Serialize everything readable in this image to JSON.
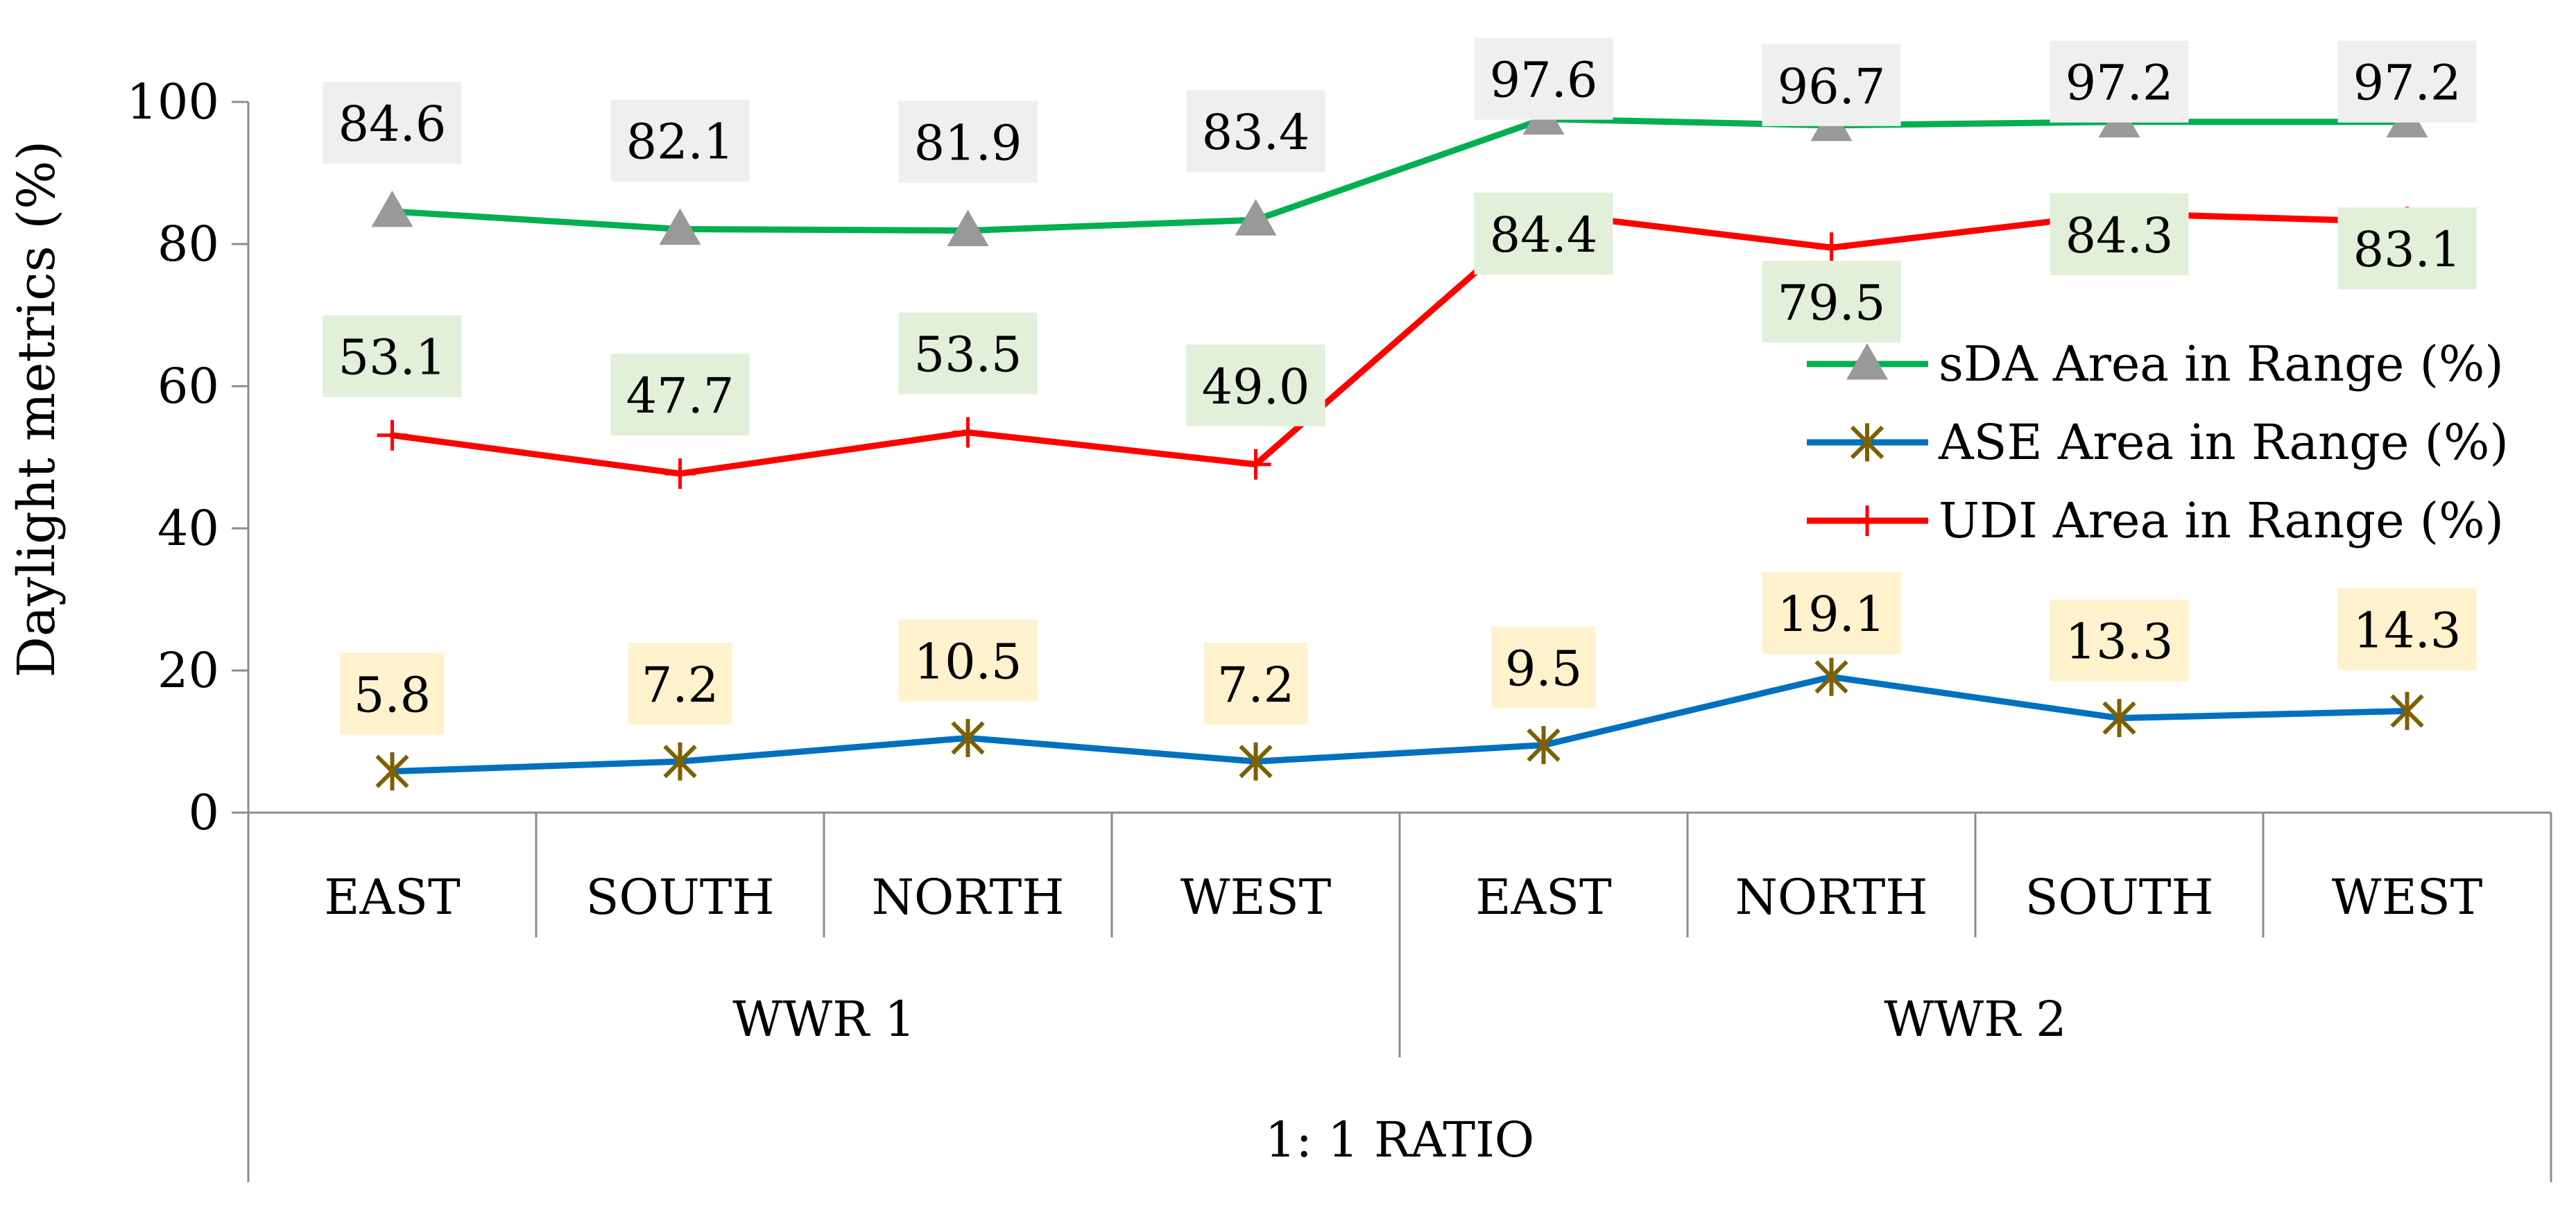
{
  "chart_data": {
    "type": "line",
    "title": "",
    "ylabel": "Daylight metrics (%)",
    "ylim": [
      0,
      100
    ],
    "yticks": [
      0,
      20,
      40,
      60,
      80,
      100
    ],
    "grid": false,
    "legend_position": "right",
    "categories": [
      "EAST",
      "SOUTH",
      "NORTH",
      "WEST",
      "EAST",
      "NORTH",
      "SOUTH",
      "WEST"
    ],
    "groups": [
      {
        "label": "WWR 1",
        "span": 4
      },
      {
        "label": "WWR 2",
        "span": 4
      }
    ],
    "supergroup": {
      "label": "1: 1 RATIO",
      "span": 8
    },
    "series": [
      {
        "name": "sDA Area in Range (%)",
        "color": "#00b050",
        "marker": "triangle",
        "marker_color": "#999999",
        "label_bg": "#efefef",
        "values": [
          84.6,
          82.1,
          81.9,
          83.4,
          97.6,
          96.7,
          97.2,
          97.2
        ]
      },
      {
        "name": "ASE Area in Range (%)",
        "color": "#0070c0",
        "marker": "star",
        "marker_color": "#7f6000",
        "label_bg": "#fff2cc",
        "values": [
          5.8,
          7.2,
          10.5,
          7.2,
          9.5,
          19.1,
          13.3,
          14.3
        ]
      },
      {
        "name": "UDI Area in Range (%)",
        "color": "#ff0000",
        "marker": "plus",
        "marker_color": "#ff0000",
        "label_bg": "#e2efd9",
        "values": [
          53.1,
          47.7,
          53.5,
          49.0,
          84.4,
          79.5,
          84.3,
          83.1
        ]
      }
    ]
  }
}
